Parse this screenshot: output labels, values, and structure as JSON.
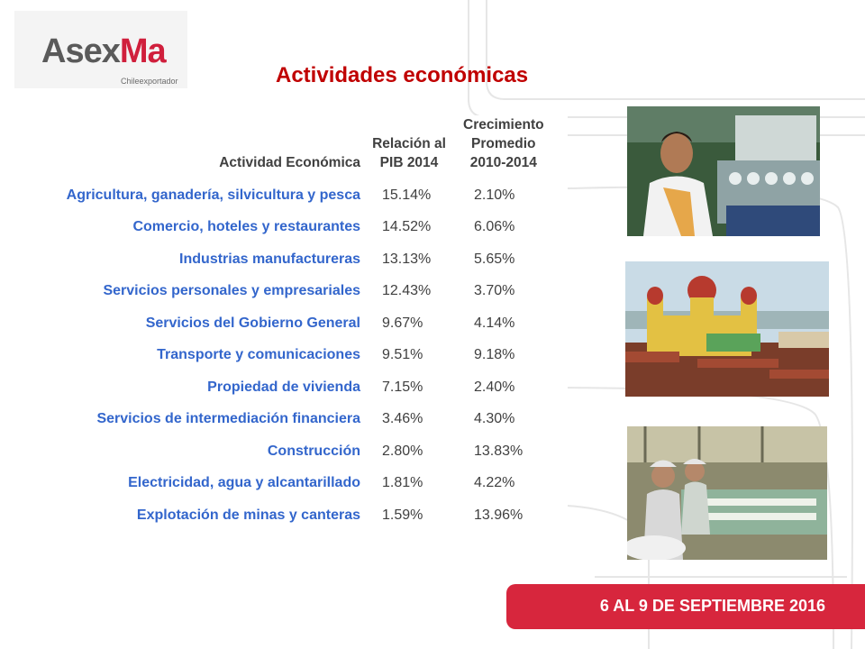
{
  "logo": {
    "word_main": "Asex",
    "word_accent": "Ma",
    "subtitle": "Chileexportador"
  },
  "title": "Actividades económicas",
  "table": {
    "headers": {
      "activity": "Actividad Económica",
      "pib_line1": "Relación al",
      "pib_line2": "PIB 2014",
      "growth_line1": "Crecimiento",
      "growth_line2": "Promedio",
      "growth_line3": "2010-2014"
    },
    "rows": [
      {
        "activity": "Agricultura, ganadería, silvicultura y pesca",
        "pib": "15.14%",
        "growth": "2.10%"
      },
      {
        "activity": "Comercio, hoteles y restaurantes",
        "pib": "14.52%",
        "growth": "6.06%"
      },
      {
        "activity": "Industrias manufactureras",
        "pib": "13.13%",
        "growth": "5.65%"
      },
      {
        "activity": "Servicios personales y empresariales",
        "pib": "12.43%",
        "growth": "3.70%"
      },
      {
        "activity": "Servicios del Gobierno General",
        "pib": "9.67%",
        "growth": "4.14%"
      },
      {
        "activity": "Transporte y comunicaciones",
        "pib": "9.51%",
        "growth": "9.18%"
      },
      {
        "activity": "Propiedad de vivienda",
        "pib": "7.15%",
        "growth": "2.40%"
      },
      {
        "activity": "Servicios de intermediación financiera",
        "pib": "3.46%",
        "growth": "4.30%"
      },
      {
        "activity": "Construcción",
        "pib": "2.80%",
        "growth": "13.83%"
      },
      {
        "activity": "Electricidad, agua y alcantarillado",
        "pib": "1.81%",
        "growth": "4.22%"
      },
      {
        "activity": "Explotación de minas y canteras",
        "pib": "1.59%",
        "growth": "13.96%"
      }
    ]
  },
  "photos": {
    "factory_worker": "factory-worker-photo",
    "cathedral": "cathedral-town-photo",
    "textile_factory": "textile-factory-photo"
  },
  "banner": {
    "text": "6 AL 9 DE SEPTIEMBRE 2016"
  },
  "colors": {
    "title": "#c00000",
    "activity_text": "#3366cc",
    "banner": "#d7263d"
  }
}
